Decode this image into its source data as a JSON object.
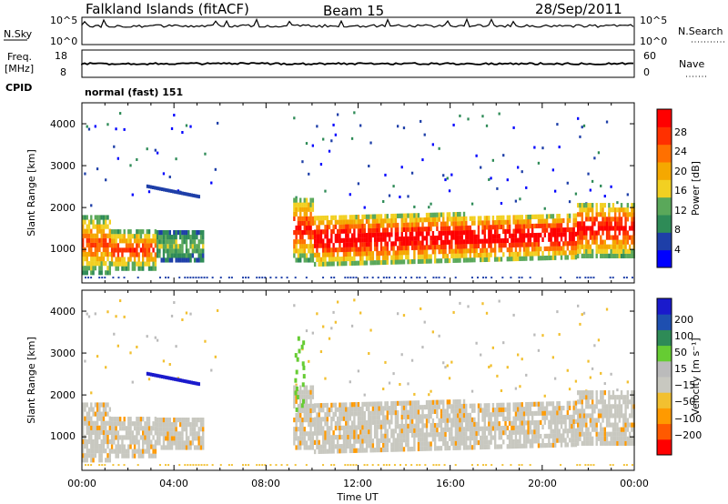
{
  "header": {
    "station": "Falkland Islands (fitACF)",
    "beam": "Beam 15",
    "date": "28/Sep/2011"
  },
  "colors": {
    "power_scale": [
      "#0000ff",
      "#1e3fa8",
      "#2e8b57",
      "#5aa85a",
      "#f2d022",
      "#f5a800",
      "#ff7000",
      "#ff3000",
      "#ff0000"
    ],
    "velocity_scale": [
      "#ff0000",
      "#ff5a00",
      "#ff9a00",
      "#f2c030",
      "#c8c8c0",
      "#bbbbbb",
      "#66cc33",
      "#2e8b57",
      "#1e4fb0",
      "#1a1acc"
    ],
    "frame": "#000000"
  },
  "chart_data": [
    {
      "type": "line",
      "name": "nsky-nsearch",
      "ylabel_left": "N.Sky",
      "ylabel_right": "N.Search",
      "yticks_left": [
        "10^5",
        "10^0"
      ],
      "yticks_right": [
        "10^5",
        "10^0"
      ],
      "xlim_hours": [
        0,
        24
      ]
    },
    {
      "type": "line",
      "name": "freq-nave",
      "ylabel_left_1": "Freq.",
      "ylabel_left_2": "[MHz]",
      "ylabel_right": "Nave",
      "yticks_left": [
        "18",
        "8"
      ],
      "yticks_right": [
        "60",
        "0"
      ],
      "cpid_label": "CPID",
      "cpid_value": "normal (fast) 151",
      "xlim_hours": [
        0,
        24
      ]
    },
    {
      "type": "heatmap",
      "name": "power",
      "ylabel": "Slant Range [km]",
      "ylim": [
        200,
        4500
      ],
      "yticks": [
        "4000",
        "3000",
        "2000",
        "1000"
      ],
      "colorbar_label": "Power [dB]",
      "colorbar_ticks": [
        "28",
        "24",
        "20",
        "16",
        "12",
        "8",
        "4"
      ],
      "xlim_hours": [
        0,
        24
      ]
    },
    {
      "type": "heatmap",
      "name": "velocity",
      "ylabel": "Slant Range [km]",
      "ylim": [
        200,
        4500
      ],
      "yticks": [
        "4000",
        "3000",
        "2000",
        "1000"
      ],
      "colorbar_label": "Velocity [m s⁻¹]",
      "colorbar_ticks": [
        "200",
        "100",
        "50",
        "15",
        "−15",
        "−50",
        "−100",
        "−200"
      ],
      "xlim_hours": [
        0,
        24
      ]
    }
  ],
  "xaxis": {
    "ticks": [
      "00:00",
      "04:00",
      "08:00",
      "12:00",
      "16:00",
      "20:00",
      "00:00"
    ],
    "label": "Time UT"
  }
}
